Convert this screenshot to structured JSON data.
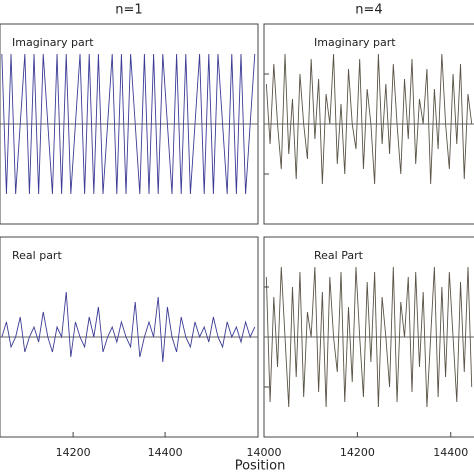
{
  "chart_data": [
    {
      "type": "line",
      "title": "n=1",
      "annotation": "Imaginary part",
      "color": "#3c3c96",
      "x": [
        14045,
        14055,
        14065,
        14075,
        14085,
        14095,
        14105,
        14115,
        14125,
        14135,
        14145,
        14155,
        14165,
        14175,
        14185,
        14195,
        14205,
        14215,
        14225,
        14235,
        14245,
        14255,
        14265,
        14275,
        14285,
        14295,
        14305,
        14315,
        14325,
        14335,
        14345,
        14355,
        14365,
        14375,
        14385,
        14395,
        14405,
        14415,
        14425,
        14435,
        14445,
        14455,
        14465,
        14475,
        14485,
        14495,
        14505,
        14515,
        14525,
        14535,
        14545,
        14555,
        14565,
        14575,
        14585,
        14595
      ],
      "values": [
        1,
        -1,
        1,
        -1,
        0,
        1,
        -1,
        1,
        -1,
        1,
        0,
        -1,
        1,
        -1,
        1,
        -1,
        0,
        1,
        -1,
        1,
        -1,
        1,
        -1,
        0,
        1,
        -1,
        1,
        -1,
        1,
        0,
        -1,
        1,
        -1,
        1,
        -1,
        1,
        0,
        -1,
        1,
        -1,
        1,
        -1,
        0,
        1,
        -1,
        1,
        -1,
        1,
        0,
        -1,
        1,
        -1,
        1,
        -1,
        0,
        1
      ],
      "xlim": [
        14041,
        14602
      ],
      "ylim": [
        -1.43,
        1.43
      ]
    },
    {
      "type": "line",
      "title": "n=4",
      "annotation": "Imaginary part",
      "color": "#5a5446",
      "x": [
        14005,
        14013,
        14021,
        14029,
        14037,
        14045,
        14053,
        14061,
        14069,
        14077,
        14085,
        14093,
        14101,
        14109,
        14117,
        14125,
        14133,
        14141,
        14149,
        14157,
        14165,
        14173,
        14181,
        14189,
        14197,
        14205,
        14213,
        14221,
        14229,
        14237,
        14245,
        14253,
        14261,
        14269,
        14277,
        14285,
        14293,
        14301,
        14309,
        14317,
        14325,
        14333,
        14341,
        14349,
        14357,
        14365,
        14373,
        14381,
        14389,
        14397,
        14405,
        14413,
        14421,
        14429,
        14437,
        14445
      ],
      "values": [
        0.8,
        -0.4,
        1.2,
        0,
        -0.9,
        1.4,
        -0.6,
        0.5,
        -1.1,
        1,
        0,
        -0.7,
        1.3,
        -0.3,
        0.9,
        -1.2,
        0.6,
        0,
        1.4,
        -0.8,
        0.4,
        -1,
        1.1,
        0,
        -0.5,
        1.3,
        -0.9,
        0.7,
        0,
        -1.2,
        1.4,
        -0.4,
        0.8,
        -0.6,
        1.2,
        0,
        -1,
        0.9,
        -0.3,
        1.3,
        -0.8,
        0.5,
        0,
        1.1,
        -1.2,
        0.7,
        -0.5,
        1.4,
        0,
        -0.9,
        1,
        -0.4,
        1.2,
        -1.1,
        0.6,
        0
      ],
      "xlim": [
        14000,
        14452
      ],
      "ylim": [
        -2,
        2
      ],
      "yticks": [
        -1,
        1
      ]
    },
    {
      "type": "line",
      "annotation": "Real part",
      "color": "#3c3c96",
      "xlabel": "Position",
      "x": [
        14045,
        14055,
        14065,
        14075,
        14085,
        14095,
        14105,
        14115,
        14125,
        14135,
        14145,
        14155,
        14165,
        14175,
        14185,
        14195,
        14205,
        14215,
        14225,
        14235,
        14245,
        14255,
        14265,
        14275,
        14285,
        14295,
        14305,
        14315,
        14325,
        14335,
        14345,
        14355,
        14365,
        14375,
        14385,
        14395,
        14405,
        14415,
        14425,
        14435,
        14445,
        14455,
        14465,
        14475,
        14485,
        14495,
        14505,
        14515,
        14525,
        14535,
        14545,
        14555,
        14565,
        14575,
        14585,
        14595
      ],
      "values": [
        0,
        0.3,
        -0.2,
        0,
        0.4,
        -0.3,
        0,
        0.2,
        -0.1,
        0.5,
        0,
        -0.3,
        0.2,
        0,
        0.9,
        -0.4,
        0.3,
        0,
        -0.2,
        0.4,
        0,
        0.6,
        -0.3,
        0,
        0.2,
        -0.1,
        0.3,
        0,
        -0.2,
        0.7,
        -0.4,
        0,
        0.3,
        0,
        0.8,
        -0.5,
        0.6,
        0,
        -0.3,
        0.4,
        0,
        -0.2,
        0.3,
        0,
        0.2,
        -0.1,
        0.4,
        0,
        -0.2,
        0.3,
        0,
        0.2,
        -0.1,
        0.3,
        0,
        0.2
      ],
      "xlim": [
        14041,
        14602
      ],
      "ylim": [
        -2,
        2
      ],
      "xticks": [
        14200,
        14400
      ]
    },
    {
      "type": "line",
      "annotation": "Real Part",
      "color": "#5a5446",
      "x": [
        14005,
        14013,
        14021,
        14029,
        14037,
        14045,
        14053,
        14061,
        14069,
        14077,
        14085,
        14093,
        14101,
        14109,
        14117,
        14125,
        14133,
        14141,
        14149,
        14157,
        14165,
        14173,
        14181,
        14189,
        14197,
        14205,
        14213,
        14221,
        14229,
        14237,
        14245,
        14253,
        14261,
        14269,
        14277,
        14285,
        14293,
        14301,
        14309,
        14317,
        14325,
        14333,
        14341,
        14349,
        14357,
        14365,
        14373,
        14381,
        14389,
        14397,
        14405,
        14413,
        14421,
        14429,
        14437,
        14445
      ],
      "values": [
        1.2,
        -1.3,
        0.8,
        -0.6,
        1.4,
        0,
        -1.4,
        1,
        -0.8,
        1.3,
        -1.2,
        0.5,
        0,
        1.4,
        -1.1,
        0.9,
        -1.4,
        1.2,
        0,
        -0.7,
        1.3,
        -1.3,
        0.6,
        -0.9,
        1.4,
        0,
        -1.2,
        1.1,
        -0.5,
        1.3,
        -1.4,
        0.8,
        0,
        -1,
        1.4,
        -1.3,
        0.7,
        0,
        1.2,
        -1.1,
        1.3,
        -0.6,
        0.9,
        -1.4,
        0,
        1.4,
        -1.2,
        1,
        -0.8,
        1.3,
        0,
        -1.3,
        1.1,
        -0.7,
        1.4,
        -1
      ],
      "xlim": [
        14000,
        14452
      ],
      "ylim": [
        -2,
        2
      ],
      "yticks": [
        -1,
        1
      ],
      "xticks": [
        14000,
        14200,
        14400
      ]
    }
  ]
}
